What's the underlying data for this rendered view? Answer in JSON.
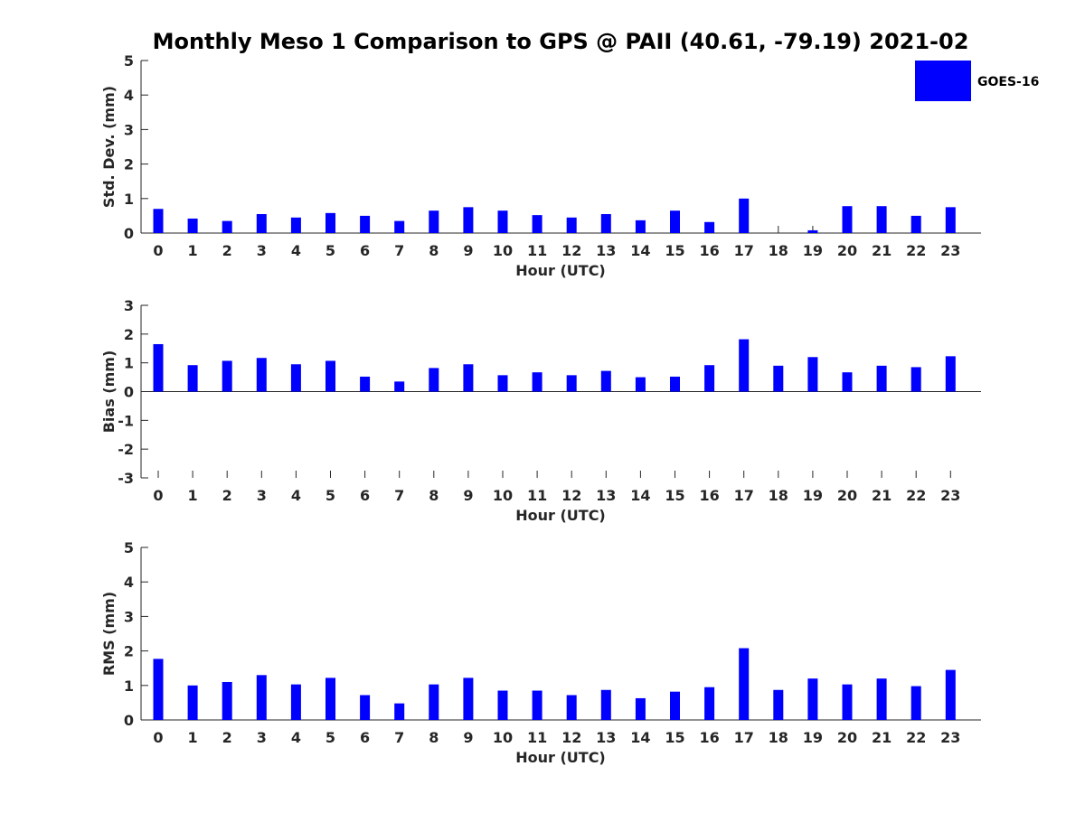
{
  "figure": {
    "title": "Monthly Meso 1 Comparison to GPS @ PAII (40.61, -79.19) 2021-02",
    "legend": {
      "label": "GOES-16",
      "color": "#0000ff",
      "placement": "top-right"
    }
  },
  "chart_data": [
    {
      "type": "bar",
      "xlabel": "Hour (UTC)",
      "ylabel": "Std. Dev. (mm)",
      "ylim": [
        0,
        5
      ],
      "yticks": [
        0,
        1,
        2,
        3,
        4,
        5
      ],
      "categories": [
        "0",
        "1",
        "2",
        "3",
        "4",
        "5",
        "6",
        "7",
        "8",
        "9",
        "10",
        "11",
        "12",
        "13",
        "14",
        "15",
        "16",
        "17",
        "18",
        "19",
        "20",
        "21",
        "22",
        "23"
      ],
      "series": [
        {
          "name": "GOES-16",
          "color": "#0000ff",
          "values": [
            0.7,
            0.42,
            0.35,
            0.55,
            0.45,
            0.58,
            0.5,
            0.35,
            0.65,
            0.75,
            0.65,
            0.52,
            0.45,
            0.55,
            0.37,
            0.65,
            0.32,
            1.0,
            0.0,
            0.08,
            0.78,
            0.78,
            0.5,
            0.75
          ]
        }
      ]
    },
    {
      "type": "bar",
      "xlabel": "Hour (UTC)",
      "ylabel": "Bias (mm)",
      "ylim": [
        -3,
        3
      ],
      "yticks": [
        -3,
        -2,
        -1,
        0,
        1,
        2,
        3
      ],
      "categories": [
        "0",
        "1",
        "2",
        "3",
        "4",
        "5",
        "6",
        "7",
        "8",
        "9",
        "10",
        "11",
        "12",
        "13",
        "14",
        "15",
        "16",
        "17",
        "18",
        "19",
        "20",
        "21",
        "22",
        "23"
      ],
      "series": [
        {
          "name": "GOES-16",
          "color": "#0000ff",
          "values": [
            1.65,
            0.92,
            1.07,
            1.17,
            0.95,
            1.07,
            0.52,
            0.35,
            0.82,
            0.95,
            0.57,
            0.67,
            0.57,
            0.72,
            0.5,
            0.52,
            0.92,
            1.82,
            0.9,
            1.2,
            0.67,
            0.9,
            0.85,
            1.23
          ]
        }
      ]
    },
    {
      "type": "bar",
      "xlabel": "Hour (UTC)",
      "ylabel": "RMS (mm)",
      "ylim": [
        0,
        5
      ],
      "yticks": [
        0,
        1,
        2,
        3,
        4,
        5
      ],
      "categories": [
        "0",
        "1",
        "2",
        "3",
        "4",
        "5",
        "6",
        "7",
        "8",
        "9",
        "10",
        "11",
        "12",
        "13",
        "14",
        "15",
        "16",
        "17",
        "18",
        "19",
        "20",
        "21",
        "22",
        "23"
      ],
      "series": [
        {
          "name": "GOES-16",
          "color": "#0000ff",
          "values": [
            1.77,
            1.0,
            1.1,
            1.3,
            1.03,
            1.22,
            0.72,
            0.48,
            1.03,
            1.22,
            0.85,
            0.85,
            0.72,
            0.87,
            0.63,
            0.82,
            0.95,
            2.08,
            0.87,
            1.2,
            1.03,
            1.2,
            0.98,
            1.45
          ]
        }
      ]
    }
  ]
}
